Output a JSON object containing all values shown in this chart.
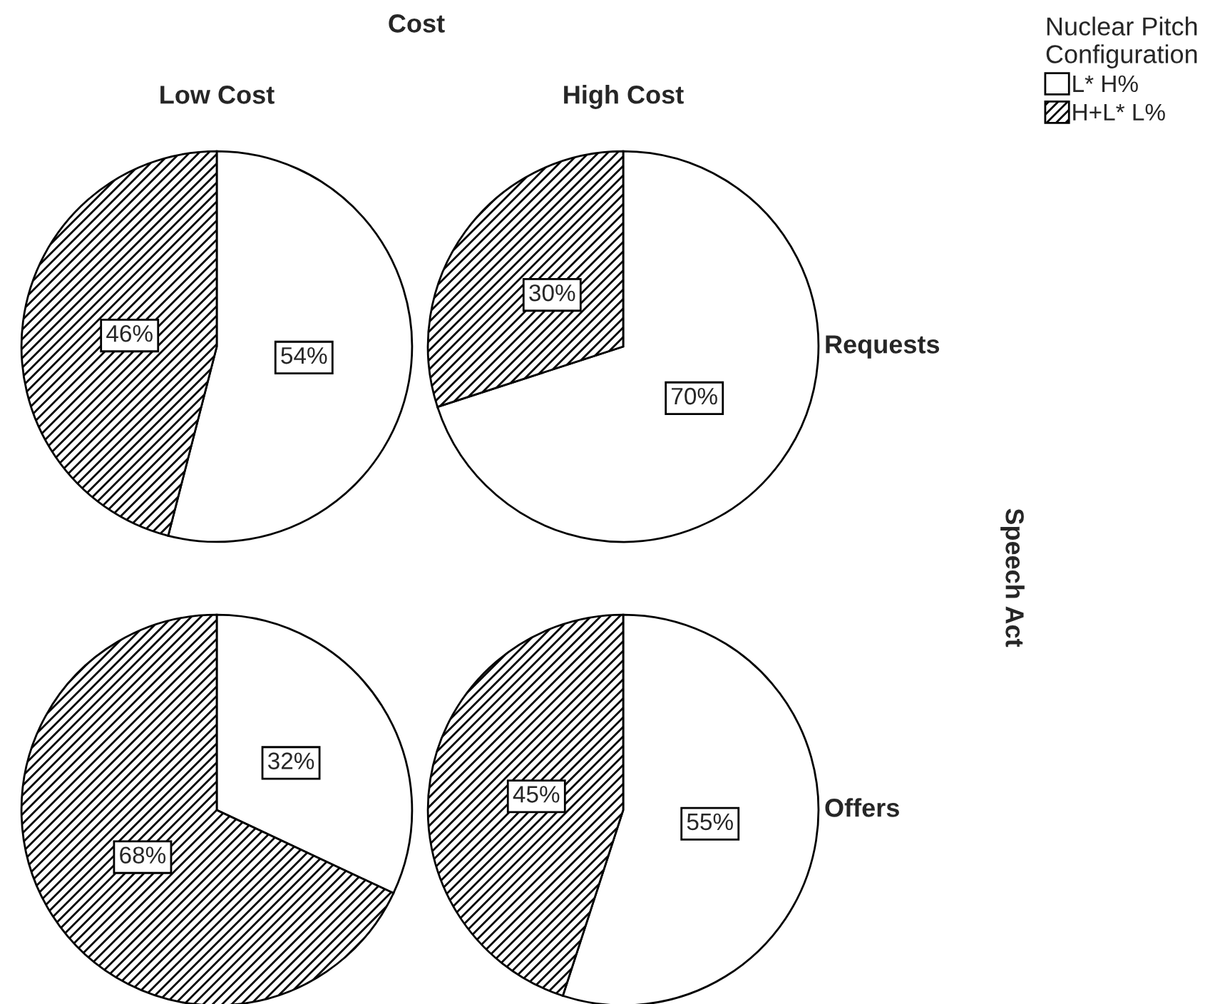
{
  "chart_data": [
    {
      "type": "pie",
      "title": "Low Cost",
      "annotations": [
        "Cost"
      ],
      "legend": "top right",
      "legend_title": "Nuclear Pitch Configuration",
      "categories": [
        "L* H%",
        "H+L* L%"
      ],
      "values": [
        54,
        46
      ],
      "value_labels": [
        "54%",
        "46%"
      ],
      "colors": [
        "#ffffff",
        "#000000"
      ]
    },
    {
      "type": "pie",
      "title": "High Cost",
      "y2label": "Requests",
      "categories": [
        null,
        null
      ],
      "values": [
        70,
        30
      ],
      "value_labels": [
        "70%",
        "30%"
      ],
      "colors": [
        "#ffffff",
        "#000000"
      ]
    },
    {
      "type": "pie",
      "categories": [
        null,
        null
      ],
      "values": [
        32,
        68
      ],
      "value_labels": [
        "32%",
        "68%"
      ],
      "colors": [
        "#ffffff",
        "#000000"
      ]
    },
    {
      "type": "pie",
      "y2label": "Offers",
      "annotations": [
        "Speech Act"
      ],
      "categories": [
        null,
        null
      ],
      "values": [
        55,
        45
      ],
      "value_labels": [
        "55%",
        "45%"
      ],
      "colors": [
        "#ffffff",
        "#000000"
      ]
    }
  ]
}
